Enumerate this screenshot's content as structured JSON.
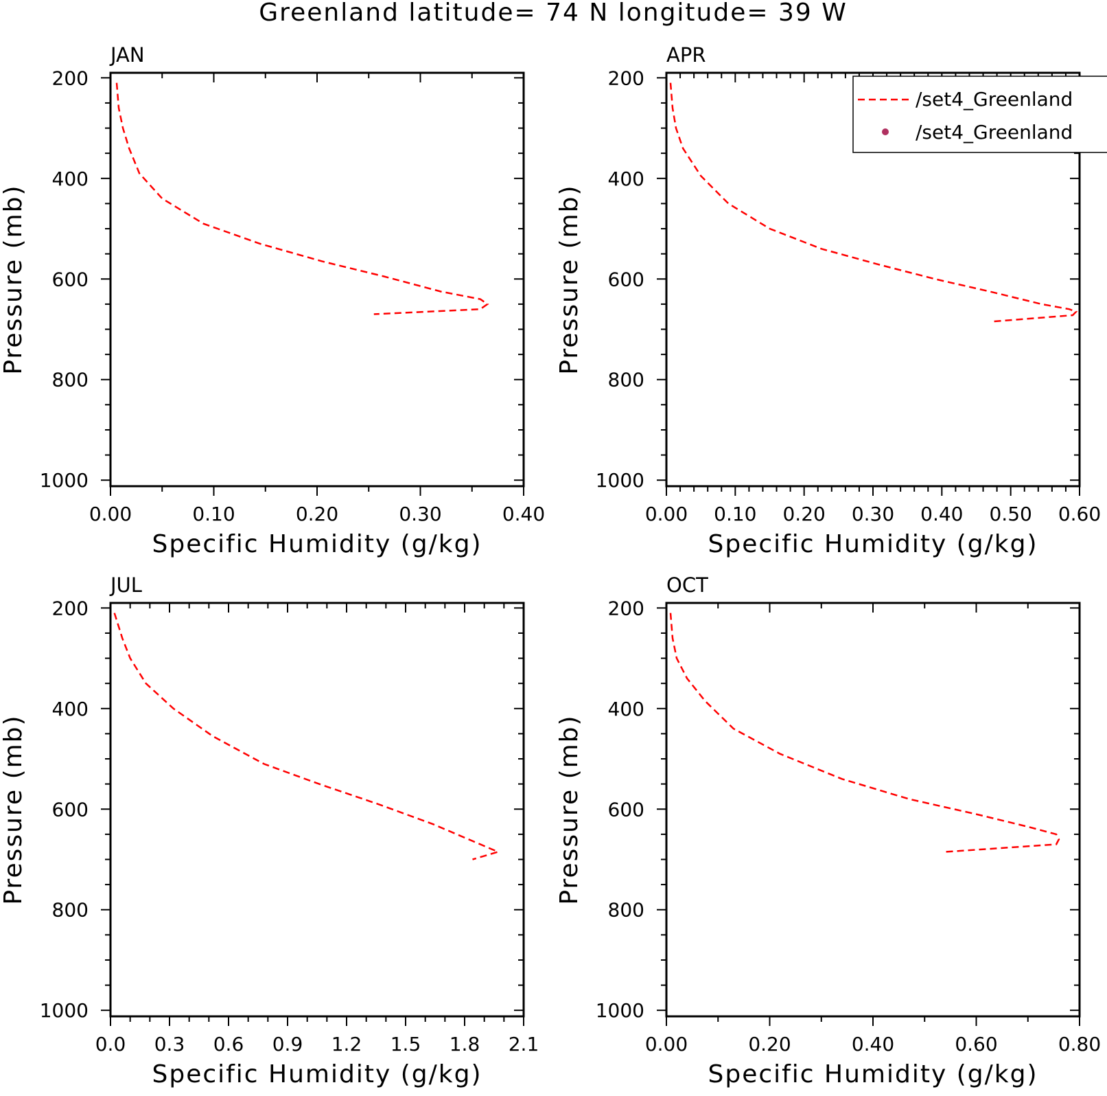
{
  "title": "Greenland  latitude= 74 N longitude= 39 W",
  "colors": {
    "line": "#ff0000",
    "marker": "#b03060",
    "axes": "#000000",
    "background": "#ffffff"
  },
  "legend": {
    "placement": "top-right of APR panel, clipped at right edge",
    "entries": [
      {
        "label": "/set4_Greenland",
        "style": "dashed-line"
      },
      {
        "label": "/set4_Greenland",
        "style": "dot-marker"
      }
    ]
  },
  "chart_data": [
    {
      "type": "line",
      "title": "JAN",
      "xlabel": "Specific Humidity (g/kg)",
      "ylabel": "Pressure (mb)",
      "xlim": [
        0,
        0.4
      ],
      "ylim": [
        1000,
        200
      ],
      "y_inverted": true,
      "xticks": [
        "0.00",
        "0.10",
        "0.20",
        "0.30",
        "0.40"
      ],
      "yticks": [
        "200",
        "400",
        "600",
        "800",
        "1000"
      ],
      "series": [
        {
          "name": "/set4_Greenland",
          "x": [
            0.006,
            0.008,
            0.012,
            0.018,
            0.028,
            0.05,
            0.09,
            0.145,
            0.205,
            0.265,
            0.32,
            0.358,
            0.365,
            0.358,
            0.255
          ],
          "y": [
            210,
            260,
            300,
            340,
            390,
            440,
            490,
            530,
            565,
            595,
            625,
            640,
            650,
            660,
            670
          ]
        }
      ],
      "grid": false
    },
    {
      "type": "line",
      "title": "APR",
      "xlabel": "Specific Humidity (g/kg)",
      "ylabel": "Pressure (mb)",
      "xlim": [
        0,
        0.6
      ],
      "ylim": [
        1000,
        200
      ],
      "y_inverted": true,
      "xticks": [
        "0.00",
        "0.10",
        "0.20",
        "0.30",
        "0.40",
        "0.50",
        "0.60"
      ],
      "yticks": [
        "200",
        "400",
        "600",
        "800",
        "1000"
      ],
      "series": [
        {
          "name": "/set4_Greenland",
          "x": [
            0.006,
            0.009,
            0.014,
            0.024,
            0.05,
            0.09,
            0.15,
            0.225,
            0.305,
            0.39,
            0.47,
            0.545,
            0.585,
            0.595,
            0.59,
            0.47
          ],
          "y": [
            210,
            260,
            300,
            340,
            395,
            450,
            500,
            540,
            570,
            600,
            625,
            650,
            660,
            665,
            672,
            685
          ]
        }
      ],
      "grid": false
    },
    {
      "type": "line",
      "title": "JUL",
      "xlabel": "Specific Humidity (g/kg)",
      "ylabel": "Pressure (mb)",
      "xlim": [
        0,
        2.1
      ],
      "ylim": [
        1000,
        200
      ],
      "y_inverted": true,
      "xticks": [
        "0.0",
        "0.3",
        "0.6",
        "0.9",
        "1.2",
        "1.5",
        "1.8",
        "2.1"
      ],
      "yticks": [
        "200",
        "400",
        "600",
        "800",
        "1000"
      ],
      "series": [
        {
          "name": "/set4_Greenland",
          "x": [
            0.02,
            0.06,
            0.1,
            0.18,
            0.32,
            0.52,
            0.78,
            1.06,
            1.36,
            1.64,
            1.82,
            1.97,
            1.84
          ],
          "y": [
            210,
            260,
            300,
            350,
            400,
            455,
            510,
            550,
            590,
            630,
            660,
            685,
            700
          ]
        }
      ],
      "grid": false
    },
    {
      "type": "line",
      "title": "OCT",
      "xlabel": "Specific Humidity (g/kg)",
      "ylabel": "Pressure (mb)",
      "xlim": [
        0,
        0.8
      ],
      "ylim": [
        1000,
        200
      ],
      "y_inverted": true,
      "xticks": [
        "0.00",
        "0.20",
        "0.40",
        "0.60",
        "0.80"
      ],
      "yticks": [
        "200",
        "400",
        "600",
        "800",
        "1000"
      ],
      "series": [
        {
          "name": "/set4_Greenland",
          "x": [
            0.008,
            0.012,
            0.02,
            0.04,
            0.075,
            0.13,
            0.22,
            0.34,
            0.47,
            0.6,
            0.7,
            0.755,
            0.76,
            0.755,
            0.54
          ],
          "y": [
            210,
            260,
            300,
            340,
            385,
            440,
            490,
            540,
            580,
            610,
            635,
            650,
            660,
            670,
            685
          ]
        }
      ],
      "grid": false
    }
  ]
}
